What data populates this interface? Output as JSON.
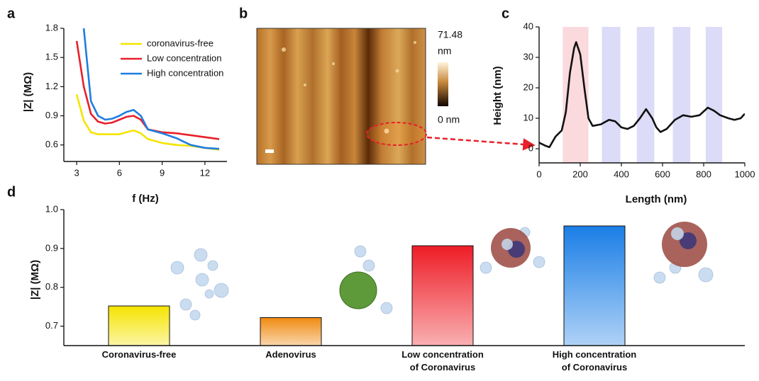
{
  "chart_data": [
    {
      "type": "line",
      "panel_label": "a",
      "x_label": "f (Hz)",
      "y_label": "|Z| (MΩ)",
      "x": [
        3,
        3.5,
        4,
        4.5,
        5,
        5.5,
        6,
        6.5,
        7,
        7.5,
        8,
        9,
        10,
        11,
        12,
        13
      ],
      "series": [
        {
          "name": "coronavirus-free",
          "color": "#f5e400",
          "values": [
            1.12,
            0.85,
            0.73,
            0.71,
            0.71,
            0.71,
            0.71,
            0.73,
            0.75,
            0.72,
            0.66,
            0.62,
            0.6,
            0.59,
            0.57,
            0.55
          ]
        },
        {
          "name": "Low concentration",
          "color": "#e8202a",
          "values": [
            1.67,
            1.2,
            0.92,
            0.84,
            0.82,
            0.83,
            0.86,
            0.89,
            0.9,
            0.86,
            0.76,
            0.73,
            0.72,
            0.7,
            0.68,
            0.66
          ]
        },
        {
          "name": "High concentration",
          "color": "#1e7ee0",
          "values": [
            null,
            1.8,
            1.05,
            0.9,
            0.86,
            0.87,
            0.9,
            0.94,
            0.96,
            0.9,
            0.76,
            0.72,
            0.67,
            0.6,
            0.57,
            0.56
          ]
        }
      ],
      "xlim": [
        2.1,
        13.55
      ],
      "xticks": [
        3,
        6,
        9,
        12
      ],
      "ylim": [
        0.43,
        1.8
      ],
      "yticks": [
        0.6,
        0.9,
        1.2,
        1.5,
        1.8
      ],
      "legend": "upper right"
    },
    {
      "type": "line",
      "panel_label": "c",
      "x_label": "Length (nm)",
      "y_label": "Height (nm)",
      "x": [
        0,
        30,
        50,
        80,
        110,
        130,
        150,
        170,
        180,
        200,
        220,
        240,
        260,
        300,
        340,
        370,
        400,
        430,
        460,
        490,
        520,
        550,
        570,
        590,
        620,
        660,
        700,
        740,
        780,
        820,
        850,
        880,
        920,
        950,
        980,
        1000
      ],
      "values": [
        2,
        1,
        0.5,
        4,
        6,
        12,
        25,
        33,
        35,
        31,
        20,
        10,
        7.5,
        8,
        9.5,
        9,
        7,
        6.5,
        7.5,
        10,
        13,
        10,
        7,
        5.5,
        6.5,
        9.5,
        11,
        10.5,
        11,
        13.5,
        12.5,
        11,
        10,
        9.5,
        10,
        11.5
      ],
      "color": "#111111",
      "bands": [
        {
          "from": 115,
          "to": 240,
          "color": "#fadadd"
        },
        {
          "from": 305,
          "to": 395,
          "color": "#dcdcf8"
        },
        {
          "from": 475,
          "to": 560,
          "color": "#dcdcf8"
        },
        {
          "from": 650,
          "to": 735,
          "color": "#dcdcf8"
        },
        {
          "from": 810,
          "to": 890,
          "color": "#dcdcf8"
        }
      ],
      "xlim": [
        0,
        1000
      ],
      "xticks": [
        0,
        200,
        400,
        600,
        800,
        1000
      ],
      "ylim": [
        -4.65,
        40
      ],
      "yticks": [
        0,
        10,
        20,
        30,
        40
      ]
    },
    {
      "type": "bar",
      "panel_label": "d",
      "y_label": "|Z| (MΩ)",
      "categories": [
        "Coronavirus-free",
        "Adenovirus",
        "Low concentration\nof Coronavirus",
        "High concentration\nof Coronavirus"
      ],
      "values": [
        0.752,
        0.722,
        0.907,
        0.958
      ],
      "colors": [
        "#f5e400",
        "#f08a10",
        "#ee1c25",
        "#1a7ee6"
      ],
      "ylim": [
        0.65,
        1.0
      ],
      "yticks": [
        0.7,
        0.8,
        0.9,
        {
          "value": 1.0,
          "label": "1.0"
        }
      ]
    }
  ],
  "image_panel": {
    "panel_label": "b",
    "colorbar_max_value": "71.48",
    "colorbar_max_unit": "nm",
    "colorbar_min": "0 nm"
  }
}
